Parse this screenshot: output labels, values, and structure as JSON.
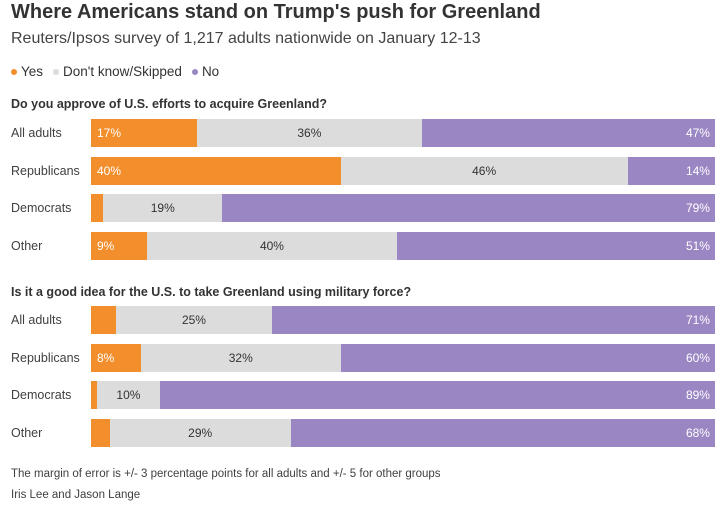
{
  "title": "Where Americans stand on Trump's push for Greenland",
  "subtitle": "Reuters/Ipsos survey of 1,217 adults nationwide on January 12-13",
  "legend": [
    {
      "label": "Yes",
      "color": "#f28e2b"
    },
    {
      "label": "Don't know/Skipped",
      "color": "#dcdcdc"
    },
    {
      "label": "No",
      "color": "#9b86c4"
    }
  ],
  "chart_data": {
    "type": "bar",
    "stacked": true,
    "orientation": "horizontal",
    "percent_scale": [
      0,
      100
    ],
    "series_colors": {
      "Yes": "#f28e2b",
      "Don't know/Skipped": "#dcdcdc",
      "No": "#9b86c4"
    },
    "panels": [
      {
        "question": "Do you approve of U.S. efforts to acquire Greenland?",
        "categories": [
          "All adults",
          "Republicans",
          "Democrats",
          "Other"
        ],
        "series": [
          {
            "name": "Yes",
            "values": [
              17,
              40,
              2,
              9
            ],
            "labels": [
              "17%",
              "40%",
              "",
              "9%"
            ]
          },
          {
            "name": "Don't know/Skipped",
            "values": [
              36,
              46,
              19,
              40
            ],
            "labels": [
              "36%",
              "46%",
              "19%",
              "40%"
            ]
          },
          {
            "name": "No",
            "values": [
              47,
              14,
              79,
              51
            ],
            "labels": [
              "47%",
              "14%",
              "79%",
              "51%"
            ]
          }
        ]
      },
      {
        "question": "Is it a good idea for the U.S. to take Greenland using military force?",
        "categories": [
          "All adults",
          "Republicans",
          "Democrats",
          "Other"
        ],
        "series": [
          {
            "name": "Yes",
            "values": [
              4,
              8,
              1,
              3
            ],
            "labels": [
              "",
              "8%",
              "",
              ""
            ]
          },
          {
            "name": "Don't know/Skipped",
            "values": [
              25,
              32,
              10,
              29
            ],
            "labels": [
              "25%",
              "32%",
              "10%",
              "29%"
            ]
          },
          {
            "name": "No",
            "values": [
              71,
              60,
              89,
              68
            ],
            "labels": [
              "71%",
              "60%",
              "89%",
              "68%"
            ]
          }
        ]
      }
    ]
  },
  "footnote": "The margin of error is +/- 3 percentage points for all adults and +/- 5 for other groups",
  "credit": "Iris Lee and Jason Lange"
}
